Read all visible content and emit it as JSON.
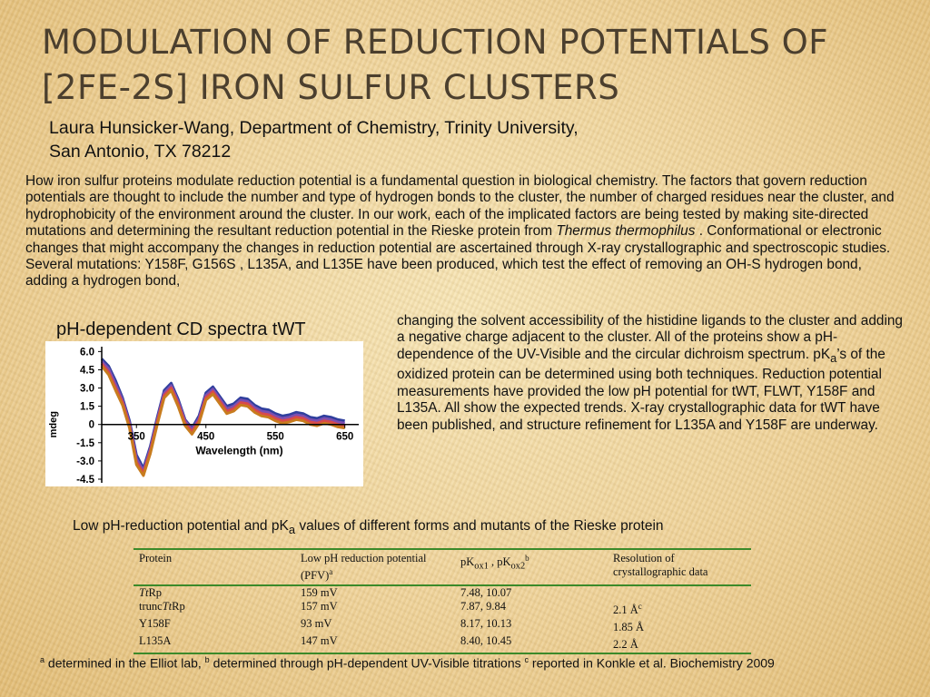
{
  "slide": {
    "title_line1": "MODULATION OF REDUCTION POTENTIALS OF",
    "title_line2": "[2FE-2S] IRON SULFUR CLUSTERS",
    "author_line1": "Laura Hunsicker-Wang, Department of Chemistry, Trinity University,",
    "author_line2": "San Antonio, TX 78212"
  },
  "abstract": {
    "p1_a": "How iron sulfur proteins modulate reduction potential is a fundamental question in biological chemistry.  The factors that govern reduction potentials are thought to include the number and type of hydrogen bonds to the cluster, the number of charged residues near the cluster, and hydrophobicity of the environment around the cluster. In our work, each of the implicated factors are being tested by making site-directed mutations and determining the resultant reduction potential in the Rieske protein from ",
    "p1_italic": "Thermus thermophilus",
    "p1_b": " . Conformational or electronic changes that might accompany the changes in reduction potential are ascertained through X-ray crystallographic and spectroscopic studies.  Several mutations: Y158F, G156S , L135A, and L135E have been produced, which test the effect of removing an OH-S hydrogen bond, adding a hydrogen bond,",
    "p2_a": "changing the solvent accessibility of the histidine ligands to the cluster and adding a negative charge adjacent to  the cluster.  All of the proteins show a pH-dependence of the UV-Visible and the circular dichroism spectrum. pK",
    "p2_sub": "a",
    "p2_b": "’s of the oxidized protein can be determined using both techniques.   Reduction potential measurements have provided the low pH  potential for tWT, FLWT, Y158F and L135A.  All show the expected trends.  X-ray crystallographic data for tWT have been  published, and structure refinement for L135A and Y158F are underway."
  },
  "cd_figure": {
    "title": "pH-dependent CD spectra tWT"
  },
  "chart_data": {
    "type": "line",
    "xlabel": "Wavelength (nm)",
    "ylabel": "mdeg",
    "x_ticks": [
      "350",
      "450",
      "550",
      "650"
    ],
    "y_ticks": [
      "6.0",
      "4.5",
      "3.0",
      "1.5",
      "0",
      "-1.5",
      "-3.0",
      "-4.5"
    ],
    "xlim": [
      300,
      670
    ],
    "ylim": [
      -4.8,
      6.4
    ],
    "grid": false,
    "x": [
      300,
      310,
      320,
      330,
      340,
      350,
      360,
      370,
      380,
      390,
      400,
      410,
      420,
      430,
      440,
      450,
      460,
      470,
      480,
      490,
      500,
      510,
      520,
      530,
      540,
      550,
      560,
      570,
      580,
      590,
      600,
      610,
      620,
      630,
      640,
      650
    ],
    "series": [
      {
        "color": "#2f3f9e",
        "values": [
          5.4,
          4.8,
          3.6,
          2.2,
          0.3,
          -2.5,
          -3.6,
          -1.8,
          0.6,
          2.8,
          3.4,
          2.1,
          0.4,
          -0.3,
          0.7,
          2.6,
          3.1,
          2.3,
          1.5,
          1.7,
          2.2,
          2.1,
          1.6,
          1.3,
          1.2,
          0.9,
          0.7,
          0.8,
          1.0,
          0.9,
          0.6,
          0.5,
          0.7,
          0.6,
          0.4,
          0.3
        ]
      },
      {
        "color": "#7d4fb0",
        "values": [
          5.2,
          4.6,
          3.3,
          2.0,
          0.1,
          -2.8,
          -3.8,
          -2.0,
          0.4,
          2.6,
          3.2,
          1.9,
          0.3,
          -0.4,
          0.5,
          2.4,
          2.9,
          2.1,
          1.3,
          1.5,
          2.0,
          1.9,
          1.4,
          1.1,
          1.0,
          0.7,
          0.5,
          0.6,
          0.8,
          0.7,
          0.4,
          0.3,
          0.5,
          0.4,
          0.2,
          0.1
        ]
      },
      {
        "color": "#d94a4a",
        "values": [
          5.0,
          4.3,
          3.0,
          1.8,
          -0.1,
          -3.1,
          -4.0,
          -2.2,
          0.2,
          2.4,
          3.0,
          1.7,
          0.1,
          -0.6,
          0.3,
          2.2,
          2.7,
          1.9,
          1.1,
          1.3,
          1.8,
          1.7,
          1.2,
          0.9,
          0.8,
          0.5,
          0.3,
          0.4,
          0.6,
          0.5,
          0.2,
          0.1,
          0.3,
          0.2,
          0.0,
          -0.1
        ]
      },
      {
        "color": "#c87c1e",
        "values": [
          4.8,
          4.1,
          2.8,
          1.6,
          -0.3,
          -3.3,
          -4.2,
          -2.4,
          0.0,
          2.2,
          2.8,
          1.5,
          -0.1,
          -0.8,
          0.1,
          2.0,
          2.5,
          1.7,
          0.9,
          1.1,
          1.6,
          1.5,
          1.0,
          0.7,
          0.6,
          0.3,
          0.1,
          0.2,
          0.4,
          0.3,
          0.0,
          -0.1,
          0.1,
          0.0,
          -0.2,
          -0.3
        ]
      }
    ]
  },
  "table": {
    "title_a": "Low pH-reduction potential and pK",
    "title_sub": "a",
    "title_b": " values of different forms and mutants of the Rieske protein",
    "headers": {
      "protein": "Protein",
      "low_ph": "Low pH reduction potential (PFV)",
      "low_ph_sup": "a",
      "pk_a": "pK",
      "pk_sub1": "ox1",
      "pk_mid": " , pK",
      "pk_sub2": "ox2",
      "pk_sup": "b",
      "resolution": "Resolution of crystallographic data"
    },
    "rows": [
      {
        "protein_italic": "Tt",
        "protein_rest": "Rp",
        "potential": "159 mV",
        "pk": "7.48, 10.07",
        "resolution": "",
        "res_sup": ""
      },
      {
        "protein_prefix": "trunc",
        "protein_italic": "Tt",
        "protein_rest": "Rp",
        "potential": "157 mV",
        "pk": "7.87, 9.84",
        "resolution": "2.1 Å",
        "res_sup": "c"
      },
      {
        "protein_rest": "Y158F",
        "potential": "93 mV",
        "pk": "8.17, 10.13",
        "resolution": "1.85 Å",
        "res_sup": ""
      },
      {
        "protein_rest": "L135A",
        "potential": "147 mV",
        "pk": "8.40, 10.45",
        "resolution": "2.2 Å",
        "res_sup": ""
      }
    ]
  },
  "footnote": {
    "a_mark": "a",
    "a_text": " determined in the Elliot lab, ",
    "b_mark": "b",
    "b_text": " determined through pH-dependent UV-Visible titrations ",
    "c_mark": "c",
    "c_text": " reported in Konkle et al. Biochemistry 2009"
  }
}
